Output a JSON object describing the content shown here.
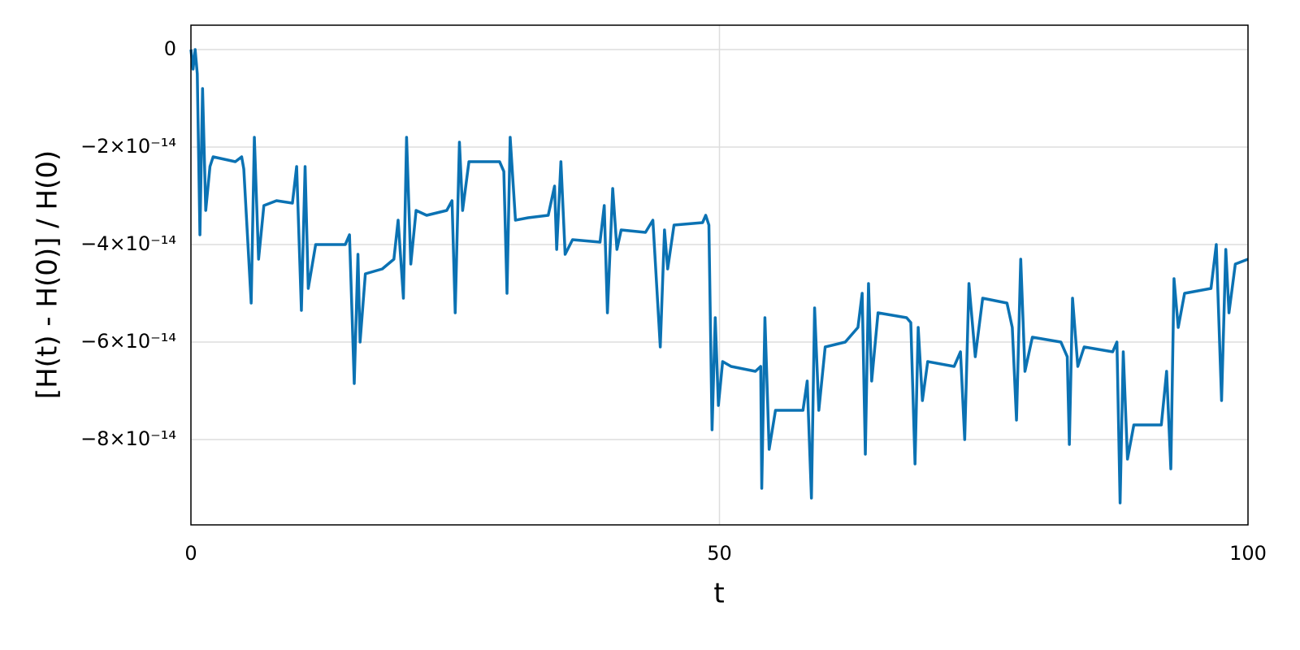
{
  "chart_data": {
    "type": "line",
    "x_label": "t",
    "y_label": "[H(t) - H(0)] / H(0)",
    "xlim": [
      0,
      100
    ],
    "xticks": [
      0,
      50,
      100
    ],
    "ylim": [
      -9.75e-14,
      5e-15
    ],
    "yticks": [
      0,
      {
        "value": -2e-14,
        "label": "−2×10⁻¹⁴"
      },
      {
        "value": -4e-14,
        "label": "−4×10⁻¹⁴"
      },
      {
        "value": -6e-14,
        "label": "−6×10⁻¹⁴"
      },
      {
        "value": -8e-14,
        "label": "−8×10⁻¹⁴"
      }
    ],
    "grid": true,
    "x": [
      0,
      0.2,
      0.4,
      0.6,
      0.85,
      1.1,
      1.4,
      1.8,
      2.1,
      4.2,
      4.8,
      5,
      5.7,
      6.0,
      6.4,
      6.9,
      8.1,
      9.6,
      10,
      10.45,
      10.8,
      11.1,
      11.8,
      14.6,
      15,
      15.45,
      15.8,
      16,
      16.5,
      18.1,
      19.2,
      19.6,
      20.1,
      20.4,
      20.8,
      21.3,
      22.3,
      24.2,
      24.7,
      25,
      25.4,
      25.7,
      26.3,
      29.2,
      29.6,
      29.9,
      30.2,
      30.7,
      31.9,
      33.8,
      34.4,
      34.6,
      35,
      35.4,
      36.1,
      38.7,
      39.1,
      39.4,
      39.9,
      40.3,
      40.7,
      43,
      43.7,
      44.4,
      44.8,
      45.1,
      45.7,
      48.4,
      48.7,
      49,
      49.3,
      49.6,
      49.9,
      50.3,
      51.1,
      53.4,
      53.9,
      54,
      54.3,
      54.7,
      55.3,
      57.9,
      58.3,
      58.7,
      59,
      59.4,
      60,
      61.9,
      63.1,
      63.5,
      63.8,
      64.1,
      64.4,
      65,
      67.7,
      68.1,
      68.5,
      68.8,
      69.2,
      69.7,
      72.2,
      72.8,
      73.2,
      73.6,
      74.2,
      74.9,
      77.2,
      77.7,
      78.1,
      78.5,
      78.9,
      79.6,
      82.3,
      82.9,
      83.1,
      83.4,
      83.9,
      84.5,
      87.2,
      87.6,
      87.9,
      88.2,
      88.6,
      89.2,
      91.8,
      92.3,
      92.7,
      93,
      93.4,
      94,
      96.5,
      97,
      97.5,
      97.9,
      98.2,
      98.8,
      100
    ],
    "series": [
      {
        "color": "#0b72b3",
        "values": [
          0,
          -4e-15,
          0,
          -5e-15,
          -3.8e-14,
          -8e-15,
          -3.3e-14,
          -2.4e-14,
          -2.2e-14,
          -2.3e-14,
          -2.2e-14,
          -2.45e-14,
          -5.2e-14,
          -1.8e-14,
          -4.3e-14,
          -3.2e-14,
          -3.1e-14,
          -3.15e-14,
          -2.4e-14,
          -5.35e-14,
          -2.4e-14,
          -4.9e-14,
          -4e-14,
          -4e-14,
          -3.8e-14,
          -6.85e-14,
          -4.2e-14,
          -6e-14,
          -4.6e-14,
          -4.5e-14,
          -4.3e-14,
          -3.5e-14,
          -5.1e-14,
          -1.8e-14,
          -4.4e-14,
          -3.3e-14,
          -3.4e-14,
          -3.3e-14,
          -3.1e-14,
          -5.4e-14,
          -1.9e-14,
          -3.3e-14,
          -2.3e-14,
          -2.3e-14,
          -2.5e-14,
          -5e-14,
          -1.8e-14,
          -3.5e-14,
          -3.45e-14,
          -3.4e-14,
          -2.8e-14,
          -4.1e-14,
          -2.3e-14,
          -4.2e-14,
          -3.9e-14,
          -3.95e-14,
          -3.2e-14,
          -5.4e-14,
          -2.85e-14,
          -4.1e-14,
          -3.7e-14,
          -3.75e-14,
          -3.5e-14,
          -6.1e-14,
          -3.7e-14,
          -4.5e-14,
          -3.6e-14,
          -3.55e-14,
          -3.4e-14,
          -3.6e-14,
          -7.8e-14,
          -5.5e-14,
          -7.3e-14,
          -6.4e-14,
          -6.5e-14,
          -6.6e-14,
          -6.5e-14,
          -9e-14,
          -5.5e-14,
          -8.2e-14,
          -7.4e-14,
          -7.4e-14,
          -6.8e-14,
          -9.2e-14,
          -5.3e-14,
          -7.4e-14,
          -6.1e-14,
          -6e-14,
          -5.7e-14,
          -5e-14,
          -8.3e-14,
          -4.8e-14,
          -6.8e-14,
          -5.4e-14,
          -5.5e-14,
          -5.6e-14,
          -8.5e-14,
          -5.7e-14,
          -7.2e-14,
          -6.4e-14,
          -6.5e-14,
          -6.2e-14,
          -8e-14,
          -4.8e-14,
          -6.3e-14,
          -5.1e-14,
          -5.2e-14,
          -5.7e-14,
          -7.6e-14,
          -4.3e-14,
          -6.6e-14,
          -5.9e-14,
          -6e-14,
          -6.3e-14,
          -8.1e-14,
          -5.1e-14,
          -6.5e-14,
          -6.1e-14,
          -6.2e-14,
          -6e-14,
          -9.3e-14,
          -6.2e-14,
          -8.4e-14,
          -7.7e-14,
          -7.7e-14,
          -6.6e-14,
          -8.6e-14,
          -4.7e-14,
          -5.7e-14,
          -5e-14,
          -4.9e-14,
          -4e-14,
          -7.2e-14,
          -4.1e-14,
          -5.4e-14,
          -4.4e-14,
          -4.3e-14
        ]
      }
    ]
  }
}
